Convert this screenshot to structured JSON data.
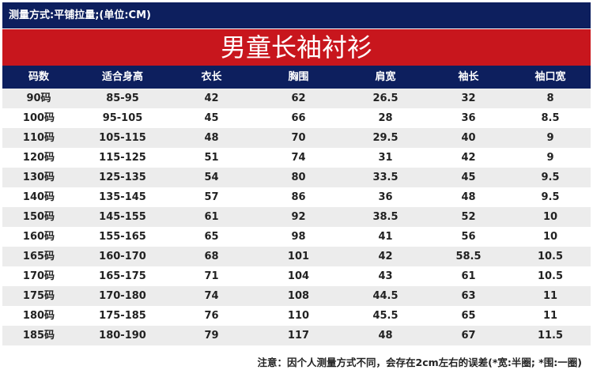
{
  "header": {
    "measure": "测量方式:平铺拉量;(单位:CM)",
    "title": "男童长袖衬衫"
  },
  "table": {
    "columns": [
      "码数",
      "适合身高",
      "衣长",
      "胸围",
      "肩宽",
      "袖长",
      "袖口宽"
    ],
    "rows": [
      [
        "90码",
        "85-95",
        "42",
        "62",
        "26.5",
        "32",
        "8"
      ],
      [
        "100码",
        "95-105",
        "45",
        "66",
        "28",
        "36",
        "8.5"
      ],
      [
        "110码",
        "105-115",
        "48",
        "70",
        "29.5",
        "40",
        "9"
      ],
      [
        "120码",
        "115-125",
        "51",
        "74",
        "31",
        "42",
        "9"
      ],
      [
        "130码",
        "125-135",
        "54",
        "80",
        "33.5",
        "45",
        "9.5"
      ],
      [
        "140码",
        "135-145",
        "57",
        "86",
        "36",
        "48",
        "9.5"
      ],
      [
        "150码",
        "145-155",
        "61",
        "92",
        "38.5",
        "52",
        "10"
      ],
      [
        "160码",
        "155-165",
        "65",
        "98",
        "41",
        "56",
        "10"
      ],
      [
        "165码",
        "160-170",
        "68",
        "101",
        "42",
        "58.5",
        "10.5"
      ],
      [
        "170码",
        "165-175",
        "71",
        "104",
        "43",
        "61",
        "10.5"
      ],
      [
        "175码",
        "170-180",
        "74",
        "108",
        "44.5",
        "63",
        "11"
      ],
      [
        "180码",
        "175-185",
        "76",
        "110",
        "45.5",
        "65",
        "11"
      ],
      [
        "185码",
        "180-190",
        "79",
        "117",
        "48",
        "67",
        "11.5"
      ]
    ]
  },
  "note": "注意：因个人测量方式不同，会存在2cm左右的误差(*宽:半圈; *围:一圈)"
}
